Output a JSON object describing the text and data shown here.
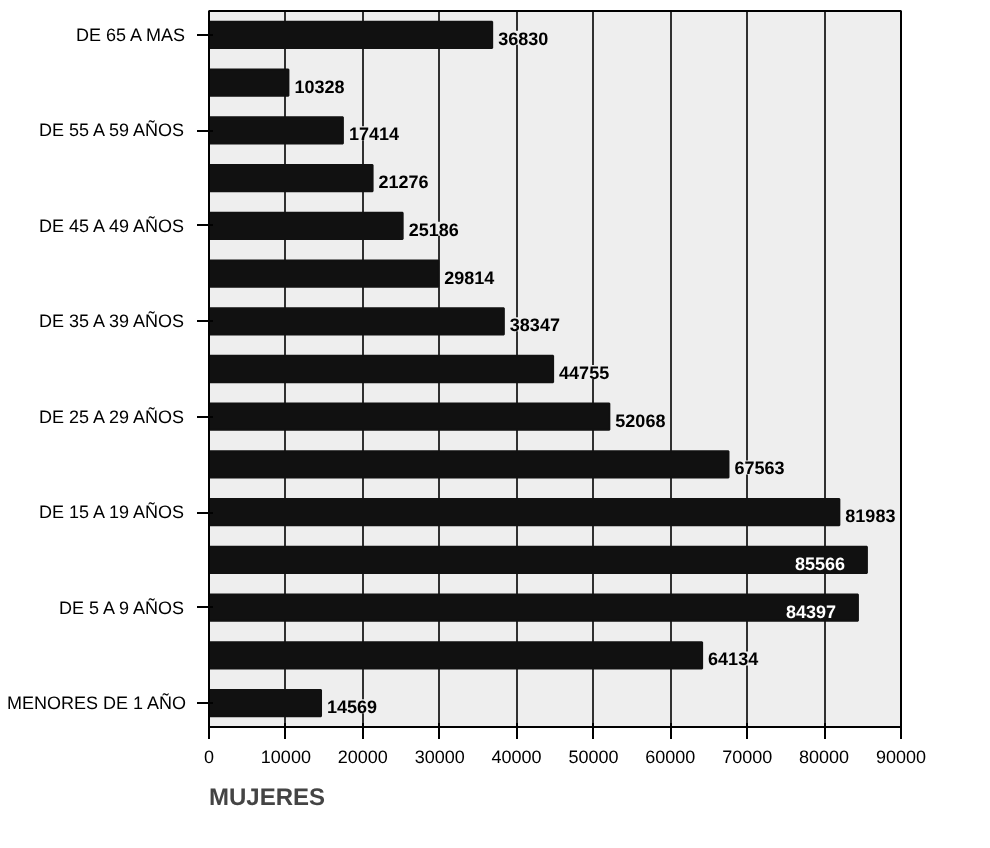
{
  "chart_data": {
    "type": "bar",
    "orientation": "horizontal",
    "title": "MUJERES",
    "categories": [
      "DE 65 A MAS",
      null,
      "DE 55 A 59 AÑOS",
      null,
      "DE 45 A 49 AÑOS",
      null,
      "DE 35 A 39 AÑOS",
      null,
      "DE 25 A 29 AÑOS",
      null,
      "DE 15 A 19 AÑOS",
      null,
      "DE 5 A 9 AÑOS",
      null,
      "MENORES DE 1 AÑO"
    ],
    "values": [
      36830,
      10328,
      17414,
      21276,
      25186,
      29814,
      38347,
      44755,
      52068,
      67563,
      81983,
      85566,
      84397,
      64134,
      14569
    ],
    "color": "#111111",
    "data_labels": true,
    "grid": "x",
    "xlim": [
      0,
      90000
    ],
    "xticks": [
      0,
      10000,
      20000,
      30000,
      40000,
      50000,
      60000,
      70000,
      80000,
      90000
    ]
  }
}
